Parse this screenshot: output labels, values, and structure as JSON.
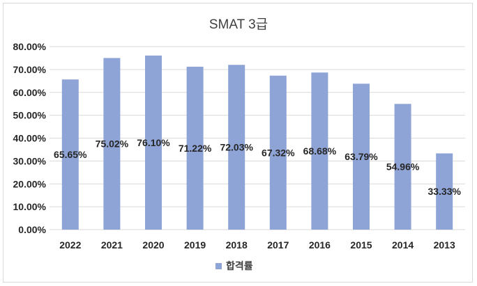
{
  "chart_data": {
    "type": "bar",
    "title": "SMAT 3급",
    "categories": [
      "2022",
      "2021",
      "2020",
      "2019",
      "2018",
      "2017",
      "2016",
      "2015",
      "2014",
      "2013"
    ],
    "series": [
      {
        "name": "합격률",
        "color": "#8fa4d6",
        "values": [
          65.65,
          75.02,
          76.1,
          71.22,
          72.03,
          67.32,
          68.68,
          63.79,
          54.96,
          33.33
        ],
        "labels": [
          "65.65%",
          "75.02%",
          "76.10%",
          "71.22%",
          "72.03%",
          "67.32%",
          "68.68%",
          "63.79%",
          "54.96%",
          "33.33%"
        ]
      }
    ],
    "ylim": [
      0,
      80
    ],
    "yticks": [
      "0.00%",
      "10.00%",
      "20.00%",
      "30.00%",
      "40.00%",
      "50.00%",
      "60.00%",
      "70.00%",
      "80.00%"
    ],
    "grid": true,
    "legend": "bottom"
  }
}
